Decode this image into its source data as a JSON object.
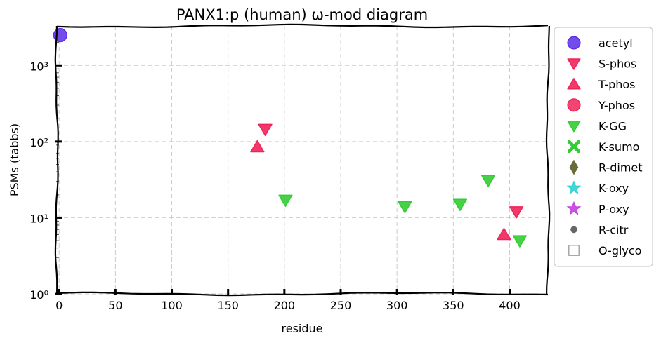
{
  "chart_data": {
    "type": "scatter",
    "title": "PANX1:p (human) ω-mod diagram",
    "xlabel": "residue",
    "ylabel": "PSMs (tabbs)",
    "xlim": [
      -2,
      434
    ],
    "ylim": [
      1,
      3300
    ],
    "yscale": "log",
    "grid": true,
    "legend_position": "outside-right",
    "x_ticks": [
      0,
      50,
      100,
      150,
      200,
      250,
      300,
      350,
      400
    ],
    "y_ticks": [
      {
        "value": 1,
        "label": "10⁰"
      },
      {
        "value": 10,
        "label": "10¹"
      },
      {
        "value": 100,
        "label": "10²"
      },
      {
        "value": 1000,
        "label": "10³"
      }
    ],
    "series": [
      {
        "name": "acetyl",
        "marker": "circle",
        "color": "#5b2ee8",
        "points": [
          {
            "x": 1,
            "y": 2500
          }
        ]
      },
      {
        "name": "S-phos",
        "marker": "triangle-down",
        "color": "#f0245a",
        "points": [
          {
            "x": 183,
            "y": 145
          },
          {
            "x": 406,
            "y": 12
          }
        ]
      },
      {
        "name": "T-phos",
        "marker": "triangle-up",
        "color": "#f0245a",
        "points": [
          {
            "x": 176,
            "y": 85
          },
          {
            "x": 395,
            "y": 6
          }
        ]
      },
      {
        "name": "Y-phos",
        "marker": "circle",
        "color": "#f0245a",
        "points": []
      },
      {
        "name": "K-GG",
        "marker": "triangle-down",
        "color": "#33cc33",
        "points": [
          {
            "x": 201,
            "y": 17
          },
          {
            "x": 307,
            "y": 14
          },
          {
            "x": 356,
            "y": 15
          },
          {
            "x": 381,
            "y": 31
          },
          {
            "x": 409,
            "y": 5
          }
        ]
      },
      {
        "name": "K-sumo",
        "marker": "x",
        "color": "#33cc33",
        "points": []
      },
      {
        "name": "R-dimet",
        "marker": "diamond",
        "color": "#6b6b3a",
        "points": []
      },
      {
        "name": "K-oxy",
        "marker": "star",
        "color": "#2ed1d1",
        "points": []
      },
      {
        "name": "P-oxy",
        "marker": "star",
        "color": "#c23fe0",
        "points": []
      },
      {
        "name": "R-citr",
        "marker": "dot",
        "color": "#666666",
        "points": []
      },
      {
        "name": "O-glyco",
        "marker": "square-open",
        "color": "#999999",
        "points": []
      }
    ]
  }
}
